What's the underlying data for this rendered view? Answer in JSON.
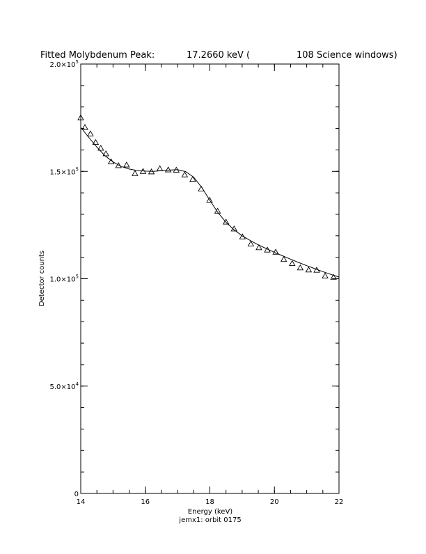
{
  "chart_data": {
    "type": "scatter",
    "title_parts": [
      "Fitted Molybdenum Peak:",
      "17.2660 keV (",
      "108 Science windows)"
    ],
    "xlabel": "Energy (keV)",
    "subcaption": "jemx1: orbit 0175",
    "ylabel": "Detector counts",
    "xlim": [
      14,
      22
    ],
    "ylim": [
      0,
      200000
    ],
    "x_ticks": [
      14,
      16,
      18,
      20,
      22
    ],
    "x_tick_labels": [
      "14",
      "16",
      "18",
      "20",
      "22"
    ],
    "x_minor_step": 0.5,
    "y_ticks": [
      0,
      50000,
      100000,
      150000,
      200000
    ],
    "y_tick_labels": [
      {
        "mantissa": "0",
        "exp": ""
      },
      {
        "mantissa": "5.0×10",
        "exp": "4"
      },
      {
        "mantissa": "1.0×10",
        "exp": "5"
      },
      {
        "mantissa": "1.5×10",
        "exp": "5"
      },
      {
        "mantissa": "2.0×10",
        "exp": "5"
      }
    ],
    "y_minor_step": 10000,
    "grid": false,
    "series": [
      {
        "marker": "triangle",
        "x": [
          14.0,
          14.13,
          14.3,
          14.46,
          14.62,
          14.78,
          14.94,
          15.17,
          15.42,
          15.68,
          15.93,
          16.19,
          16.45,
          16.71,
          16.96,
          17.22,
          17.47,
          17.73,
          17.99,
          18.24,
          18.5,
          18.75,
          19.01,
          19.27,
          19.52,
          19.78,
          20.04,
          20.29,
          20.55,
          20.8,
          21.06,
          21.31,
          21.57,
          21.83
        ],
        "y": [
          175000,
          170500,
          167500,
          163500,
          160800,
          158200,
          154500,
          152700,
          153000,
          149000,
          150000,
          149800,
          151300,
          150700,
          150600,
          148400,
          146300,
          141800,
          136600,
          131500,
          126400,
          123200,
          119500,
          116200,
          114500,
          113400,
          112400,
          109000,
          107100,
          105100,
          104100,
          104000,
          101300,
          100700
        ]
      },
      {
        "type": "line",
        "style": "fit",
        "x": [
          14.0,
          14.25,
          14.5,
          14.75,
          15.0,
          15.25,
          15.5,
          15.75,
          16.0,
          16.25,
          16.5,
          16.75,
          17.0,
          17.25,
          17.5,
          17.75,
          18.0,
          18.25,
          18.5,
          18.75,
          19.0,
          19.25,
          19.5,
          19.75,
          20.0,
          20.25,
          20.5,
          20.75,
          21.0,
          21.25,
          21.5,
          21.75,
          22.0
        ],
        "y": [
          170500,
          165800,
          161300,
          157300,
          154400,
          152300,
          151100,
          150400,
          150100,
          150000,
          150300,
          150600,
          150800,
          149900,
          147300,
          142500,
          136500,
          130800,
          126300,
          122800,
          120000,
          117800,
          115800,
          114000,
          112300,
          110700,
          109100,
          107600,
          106100,
          104700,
          103300,
          102000,
          100800
        ]
      }
    ]
  }
}
